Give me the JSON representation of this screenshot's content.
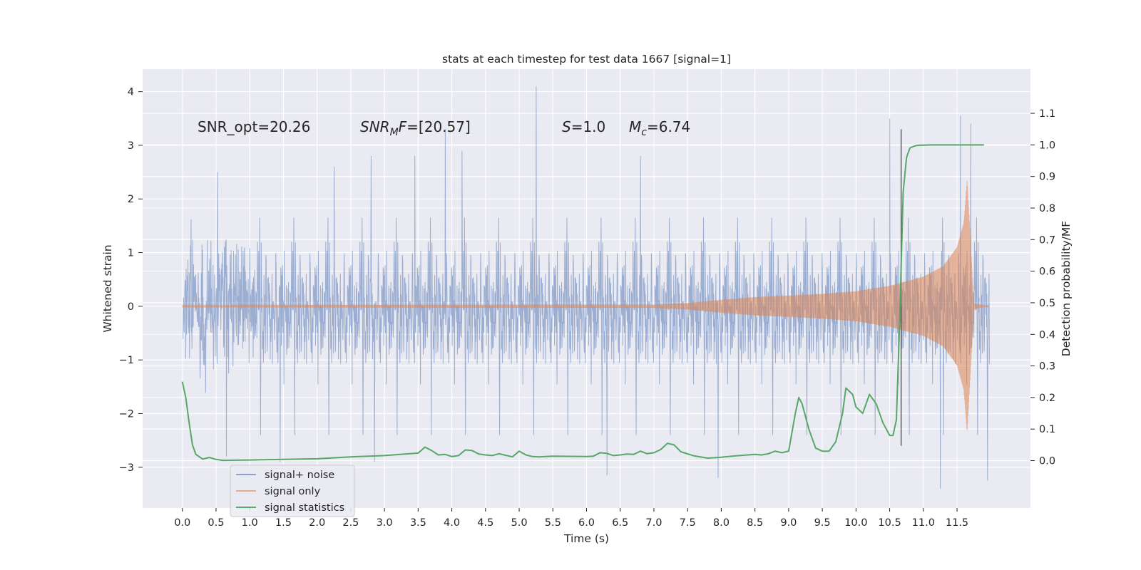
{
  "chart_data": {
    "type": "line",
    "title": "stats at each timestep for test data 1667 [signal=1]",
    "xlabel": "Time (s)",
    "ylabel": "Whitened strain",
    "y2label": "Detection probability/MF",
    "xlim": [
      -0.59,
      12.59
    ],
    "ylim": [
      -3.76,
      4.42
    ],
    "y2lim": [
      -0.15,
      1.24
    ],
    "xticks": [
      "0.0",
      "0.5",
      "1.0",
      "1.5",
      "2.0",
      "2.5",
      "3.0",
      "3.5",
      "4.0",
      "4.5",
      "5.0",
      "5.5",
      "6.0",
      "6.5",
      "7.0",
      "7.5",
      "8.0",
      "8.5",
      "9.0",
      "9.5",
      "10.0",
      "10.5",
      "11.0",
      "11.5"
    ],
    "yticks": [
      "4",
      "3",
      "2",
      "1",
      "0",
      "−1",
      "−2",
      "−3"
    ],
    "y2ticks": [
      "0.0",
      "0.1",
      "0.2",
      "0.3",
      "0.4",
      "0.5",
      "0.6",
      "0.7",
      "0.8",
      "0.9",
      "1.0",
      "1.1"
    ],
    "grid": true,
    "annotations": {
      "snr_opt": "SNR_opt=20.26",
      "snr_mf_name": "SNR",
      "snr_mf_sub": "M",
      "snr_mf_rest": "F",
      "snr_mf_value": "=[20.57]",
      "s_name": "S",
      "s_value": "=1.0",
      "mc_name": "M",
      "mc_sub": "c",
      "mc_value": "=6.74"
    },
    "legend": {
      "placement": "lower-left",
      "entries": [
        "signal+ noise",
        "signal only",
        "signal statistics"
      ]
    },
    "colors": {
      "noise": "#4c72b0",
      "signal": "#dd8452",
      "stats": "#55a868",
      "vline": "#555555",
      "background": "#eaeaf2",
      "grid": "#ffffff"
    },
    "series": [
      {
        "name": "signal+ noise",
        "kind": "noise-envelope",
        "x_range": [
          0.0,
          11.98
        ],
        "typical_range": [
          -1.5,
          1.5
        ],
        "extremes": [
          {
            "x": 0.52,
            "y": 2.5
          },
          {
            "x": 0.65,
            "y": -2.8
          },
          {
            "x": 1.45,
            "y": -2.9
          },
          {
            "x": 2.25,
            "y": 2.6
          },
          {
            "x": 2.8,
            "y": 2.8
          },
          {
            "x": 2.85,
            "y": -2.9
          },
          {
            "x": 3.45,
            "y": 2.8
          },
          {
            "x": 3.9,
            "y": 3.3
          },
          {
            "x": 4.15,
            "y": 2.9
          },
          {
            "x": 5.25,
            "y": 4.1
          },
          {
            "x": 6.3,
            "y": -3.15
          },
          {
            "x": 6.8,
            "y": 2.8
          },
          {
            "x": 7.95,
            "y": -3.2
          },
          {
            "x": 10.5,
            "y": 3.5
          },
          {
            "x": 11.25,
            "y": -3.4
          },
          {
            "x": 11.55,
            "y": 3.55
          },
          {
            "x": 11.7,
            "y": 3.4
          },
          {
            "x": 11.95,
            "y": -3.25
          }
        ]
      },
      {
        "name": "signal only",
        "kind": "chirp",
        "x": [
          0.0,
          7.0,
          7.5,
          8.0,
          8.5,
          9.0,
          9.5,
          10.0,
          10.5,
          11.0,
          11.3,
          11.5,
          11.6,
          11.65,
          11.7,
          11.75,
          11.98
        ],
        "amplitude": [
          0.02,
          0.03,
          0.06,
          0.12,
          0.17,
          0.2,
          0.23,
          0.28,
          0.38,
          0.55,
          0.75,
          1.1,
          1.55,
          2.35,
          1.2,
          0.05,
          0.0
        ]
      },
      {
        "name": "signal statistics",
        "axis": "right",
        "x": [
          0.0,
          0.05,
          0.1,
          0.15,
          0.2,
          0.3,
          0.4,
          0.5,
          0.6,
          1.0,
          1.5,
          2.0,
          2.5,
          3.0,
          3.5,
          3.55,
          3.6,
          3.7,
          3.8,
          3.9,
          4.0,
          4.1,
          4.2,
          4.3,
          4.4,
          4.5,
          4.6,
          4.7,
          4.8,
          4.9,
          5.0,
          5.1,
          5.2,
          5.3,
          5.5,
          6.0,
          6.1,
          6.2,
          6.3,
          6.4,
          6.5,
          6.6,
          6.7,
          6.8,
          6.9,
          7.0,
          7.1,
          7.2,
          7.3,
          7.4,
          7.6,
          7.8,
          8.0,
          8.2,
          8.5,
          8.6,
          8.7,
          8.8,
          8.9,
          9.0,
          9.1,
          9.15,
          9.2,
          9.3,
          9.4,
          9.5,
          9.6,
          9.7,
          9.8,
          9.85,
          9.95,
          10.0,
          10.1,
          10.2,
          10.3,
          10.4,
          10.5,
          10.55,
          10.6,
          10.65,
          10.7,
          10.75,
          10.8,
          10.85,
          10.9,
          10.95,
          11.0,
          11.1,
          11.2,
          11.4,
          11.6,
          11.8,
          11.9
        ],
        "values": [
          0.25,
          0.2,
          0.12,
          0.05,
          0.02,
          0.005,
          0.01,
          0.004,
          0.001,
          0.002,
          0.004,
          0.006,
          0.012,
          0.016,
          0.024,
          0.033,
          0.043,
          0.032,
          0.018,
          0.02,
          0.013,
          0.016,
          0.034,
          0.032,
          0.021,
          0.018,
          0.016,
          0.022,
          0.017,
          0.012,
          0.03,
          0.018,
          0.013,
          0.012,
          0.014,
          0.013,
          0.014,
          0.025,
          0.023,
          0.016,
          0.018,
          0.021,
          0.02,
          0.03,
          0.022,
          0.025,
          0.035,
          0.055,
          0.05,
          0.028,
          0.015,
          0.008,
          0.011,
          0.015,
          0.02,
          0.018,
          0.022,
          0.03,
          0.025,
          0.03,
          0.15,
          0.2,
          0.18,
          0.1,
          0.04,
          0.03,
          0.03,
          0.06,
          0.15,
          0.23,
          0.21,
          0.17,
          0.15,
          0.21,
          0.18,
          0.12,
          0.08,
          0.08,
          0.13,
          0.45,
          0.85,
          0.96,
          0.99,
          0.995,
          0.998,
          0.999,
          0.999,
          1.0,
          1.0,
          1.0,
          1.0,
          1.0,
          1.0
        ]
      }
    ],
    "vline": {
      "x": 10.67,
      "y": [
        -2.6,
        3.3
      ]
    }
  }
}
